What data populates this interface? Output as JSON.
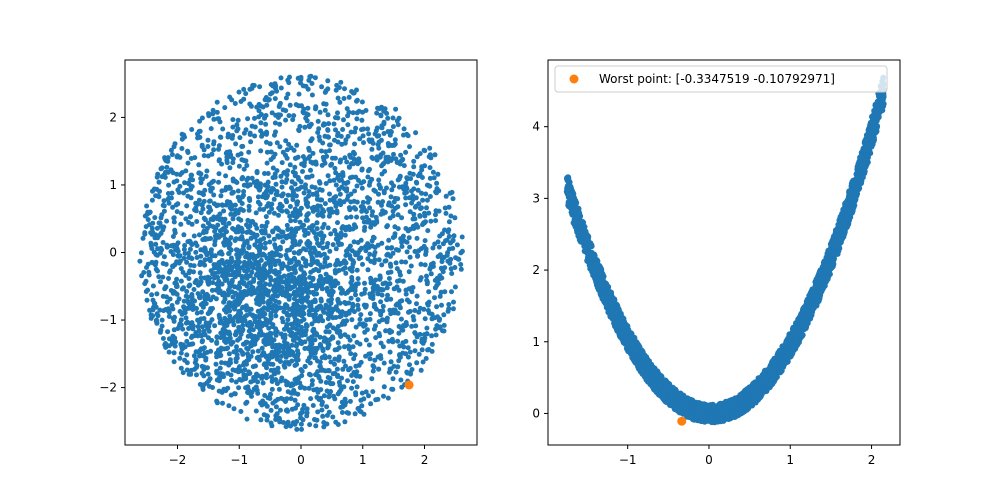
{
  "chart_data": [
    {
      "type": "scatter",
      "title": "",
      "xlabel": "",
      "ylabel": "",
      "xlim": [
        -2.85,
        2.85
      ],
      "ylim": [
        -2.85,
        2.85
      ],
      "xticks": [
        -2,
        -1,
        0,
        1,
        2
      ],
      "yticks": [
        -2,
        -1,
        0,
        1,
        2
      ],
      "xtick_labels": [
        "−2",
        "−1",
        "0",
        "1",
        "2"
      ],
      "ytick_labels": [
        "−2",
        "−1",
        "0",
        "1",
        "2"
      ],
      "grid": false,
      "series": [
        {
          "color": "#1f77b4",
          "distribution": "dense cloud of ~4000 points filling a disk of radius ~2.6 centered at (0, 0), densest toward the lower-left",
          "points": [
            [
              -0.4,
              -0.5
            ],
            [
              0.3,
              0.2
            ],
            [
              -1.1,
              -0.9
            ],
            [
              1.5,
              1.2
            ],
            [
              -2.0,
              0.3
            ],
            [
              0.8,
              -1.6
            ],
            [
              -0.6,
              2.2
            ],
            [
              2.3,
              -0.4
            ],
            [
              1.1,
              1.9
            ],
            [
              -1.8,
              -1.4
            ],
            [
              0.0,
              -2.5
            ],
            [
              -2.5,
              0.0
            ],
            [
              0.2,
              2.6
            ],
            [
              2.5,
              0.3
            ]
          ]
        },
        {
          "color": "#ff7f0e",
          "points": [
            [
              1.75,
              -1.96
            ]
          ]
        }
      ]
    },
    {
      "type": "scatter",
      "title": "",
      "xlabel": "",
      "ylabel": "",
      "xlim": [
        -1.98,
        2.35
      ],
      "ylim": [
        -0.44,
        4.93
      ],
      "xticks": [
        -1,
        0,
        1,
        2
      ],
      "yticks": [
        0,
        1,
        2,
        3,
        4
      ],
      "xtick_labels": [
        "−1",
        "0",
        "1",
        "2"
      ],
      "ytick_labels": [
        "0",
        "1",
        "2",
        "3",
        "4"
      ],
      "grid": false,
      "legend": {
        "placement": "top-left",
        "entries": [
          "Worst point: [-0.3347519  -0.10792971]"
        ]
      },
      "series": [
        {
          "color": "#1f77b4",
          "distribution": "dense band of points along y ≈ x² − 0.05·x, for x from about -1.75 to 2.15",
          "points": [
            [
              -1.75,
              2.85
            ],
            [
              -1.5,
              2.3
            ],
            [
              -1.0,
              1.05
            ],
            [
              -0.5,
              0.28
            ],
            [
              0.0,
              0.0
            ],
            [
              0.5,
              0.25
            ],
            [
              1.0,
              0.95
            ],
            [
              1.5,
              2.2
            ],
            [
              2.0,
              3.95
            ],
            [
              2.15,
              4.65
            ]
          ]
        },
        {
          "name": "Worst point: [-0.3347519  -0.10792971]",
          "color": "#ff7f0e",
          "points": [
            [
              -0.3347519,
              -0.10792971
            ]
          ]
        }
      ]
    }
  ]
}
